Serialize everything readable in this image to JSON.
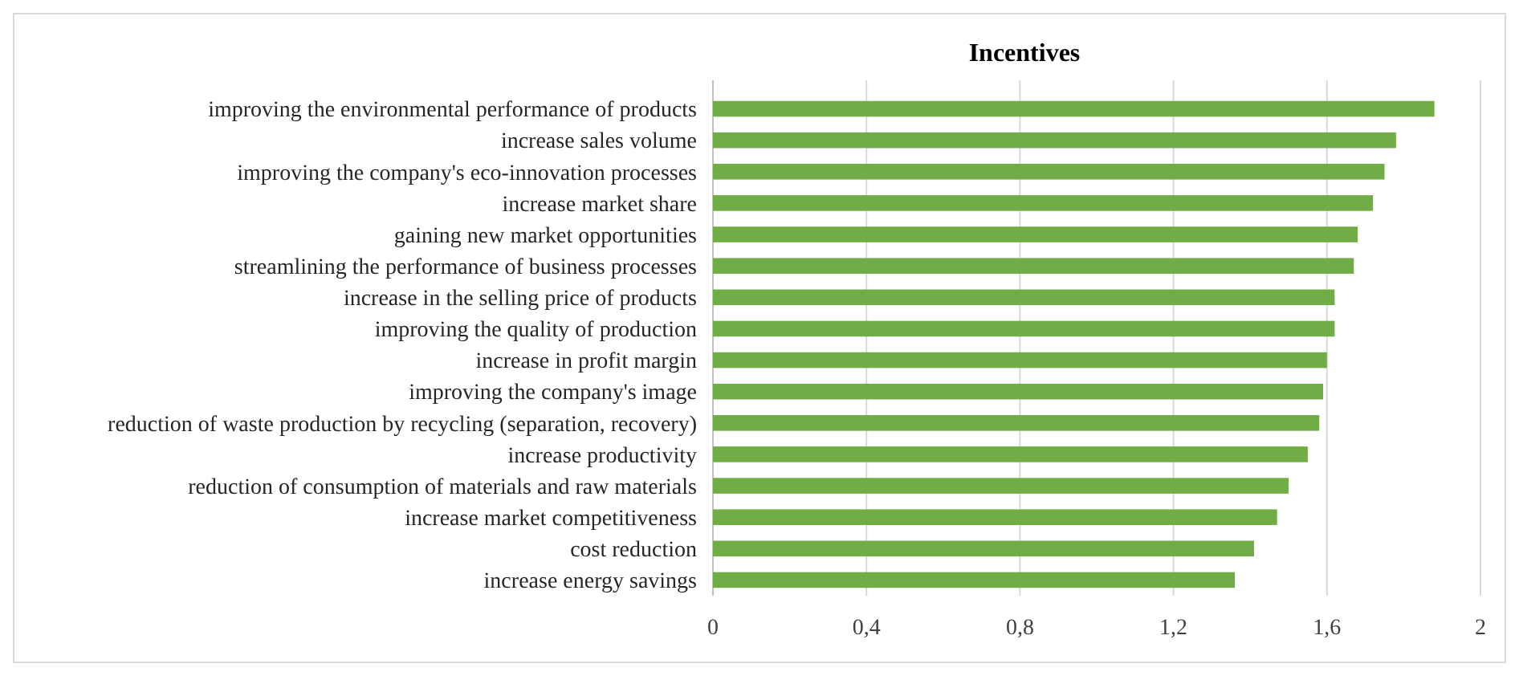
{
  "chart_data": {
    "type": "bar",
    "orientation": "horizontal",
    "title": "Incentives",
    "categories": [
      "improving the environmental performance of products",
      "increase sales volume",
      "improving the company's eco-innovation processes",
      "increase market share",
      "gaining new market opportunities",
      "streamlining the performance of business processes",
      "increase in the selling price of products",
      "improving the quality of production",
      "increase in profit margin",
      "improving the company's image",
      "reduction of waste production by recycling (separation, recovery)",
      "increase productivity",
      "reduction of consumption of materials and raw materials",
      "increase market competitiveness",
      "cost reduction",
      "increase energy savings"
    ],
    "values": [
      1.88,
      1.78,
      1.75,
      1.72,
      1.68,
      1.67,
      1.62,
      1.62,
      1.6,
      1.59,
      1.58,
      1.55,
      1.5,
      1.47,
      1.41,
      1.36
    ],
    "color": "#70ad47",
    "xlim": [
      0,
      2
    ],
    "xticks": [
      0,
      {
        "value": 0.4,
        "label": "0,4"
      },
      {
        "value": 0.8,
        "label": "0,8"
      },
      {
        "value": 1.2,
        "label": "1,2"
      },
      {
        "value": 1.6,
        "label": "1,6"
      },
      2
    ],
    "grid": "x"
  }
}
